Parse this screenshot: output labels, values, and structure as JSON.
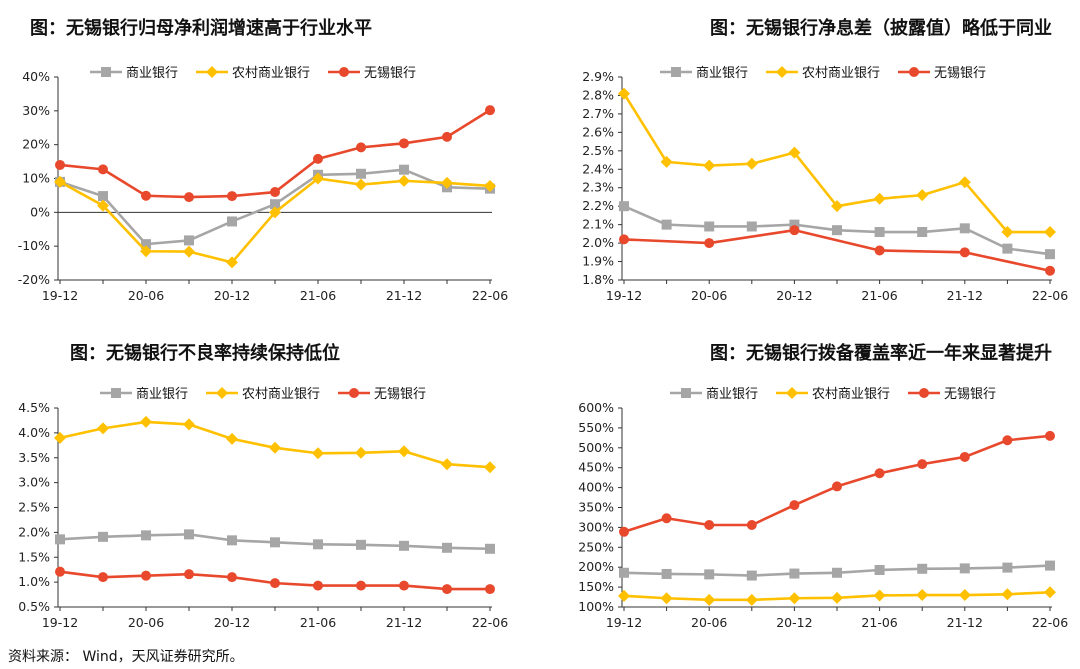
{
  "source": "资料来源：  Wind，天风证券研究所。",
  "series_names": [
    "商业银行",
    "农村商业银行",
    "无锡银行"
  ],
  "series_colors": [
    "#A6A6A6",
    "#FFC000",
    "#E8482C"
  ],
  "chart_data": [
    {
      "type": "line",
      "title": "图：无锡银行归母净利润增速高于行业水平",
      "x_tick_labels": [
        "19-12",
        "20-06",
        "20-12",
        "21-06",
        "21-12",
        "22-06"
      ],
      "x": [
        "19-12",
        "20-03",
        "20-06",
        "20-09",
        "20-12",
        "21-03",
        "21-06",
        "21-09",
        "21-12",
        "22-03",
        "22-06"
      ],
      "ylim": [
        -20,
        40
      ],
      "yticks": [
        -20,
        -10,
        0,
        10,
        20,
        30,
        40
      ],
      "ytick_labels": [
        "-20%",
        "-10%",
        "0%",
        "10%",
        "20%",
        "30%",
        "40%"
      ],
      "series": [
        {
          "name": "商业银行",
          "values": [
            9,
            4.8,
            -9.4,
            -8.3,
            -2.7,
            2.4,
            11.1,
            11.4,
            12.6,
            7.4,
            7
          ]
        },
        {
          "name": "农村商业银行",
          "values": [
            9,
            2,
            -11.5,
            -11.6,
            -14.8,
            0,
            10,
            8.2,
            9.3,
            8.7,
            7.8
          ]
        },
        {
          "name": "无锡银行",
          "values": [
            14,
            12.7,
            4.9,
            4.5,
            4.8,
            6,
            15.8,
            19.2,
            20.4,
            22.3,
            30.2
          ]
        }
      ]
    },
    {
      "type": "line",
      "title": "图：无锡银行净息差（披露值）略低于同业",
      "x_tick_labels": [
        "19-12",
        "20-06",
        "20-12",
        "21-06",
        "21-12",
        "22-06"
      ],
      "x": [
        "19-12",
        "20-03",
        "20-06",
        "20-09",
        "20-12",
        "21-03",
        "21-06",
        "21-09",
        "21-12",
        "22-03",
        "22-06"
      ],
      "ylim": [
        1.8,
        2.9
      ],
      "yticks": [
        1.8,
        1.9,
        2.0,
        2.1,
        2.2,
        2.3,
        2.4,
        2.5,
        2.6,
        2.7,
        2.8,
        2.9
      ],
      "ytick_labels": [
        "1.8%",
        "1.9%",
        "2.0%",
        "2.1%",
        "2.2%",
        "2.3%",
        "2.4%",
        "2.5%",
        "2.6%",
        "2.7%",
        "2.8%",
        "2.9%"
      ],
      "series": [
        {
          "name": "商业银行",
          "values": [
            2.2,
            2.1,
            2.09,
            2.09,
            2.1,
            2.07,
            2.06,
            2.06,
            2.08,
            1.97,
            1.94
          ]
        },
        {
          "name": "农村商业银行",
          "values": [
            2.81,
            2.44,
            2.42,
            2.43,
            2.49,
            2.2,
            2.24,
            2.26,
            2.33,
            2.06,
            2.06
          ]
        },
        {
          "name": "无锡银行",
          "values": [
            2.02,
            null,
            2.0,
            null,
            2.07,
            null,
            1.96,
            null,
            1.95,
            null,
            1.85
          ]
        }
      ]
    },
    {
      "type": "line",
      "title": "图：无锡银行不良率持续保持低位",
      "x_tick_labels": [
        "19-12",
        "20-06",
        "20-12",
        "21-06",
        "21-12",
        "22-06"
      ],
      "x": [
        "19-12",
        "20-03",
        "20-06",
        "20-09",
        "20-12",
        "21-03",
        "21-06",
        "21-09",
        "21-12",
        "22-03",
        "22-06"
      ],
      "ylim": [
        0.5,
        4.5
      ],
      "yticks": [
        0.5,
        1.0,
        1.5,
        2.0,
        2.5,
        3.0,
        3.5,
        4.0,
        4.5
      ],
      "ytick_labels": [
        "0.5%",
        "1.0%",
        "1.5%",
        "2.0%",
        "2.5%",
        "3.0%",
        "3.5%",
        "4.0%",
        "4.5%"
      ],
      "series": [
        {
          "name": "商业银行",
          "values": [
            1.86,
            1.91,
            1.94,
            1.96,
            1.84,
            1.8,
            1.76,
            1.75,
            1.73,
            1.69,
            1.67
          ]
        },
        {
          "name": "农村商业银行",
          "values": [
            3.9,
            4.09,
            4.22,
            4.17,
            3.88,
            3.7,
            3.59,
            3.6,
            3.63,
            3.37,
            3.31
          ]
        },
        {
          "name": "无锡银行",
          "values": [
            1.21,
            1.1,
            1.13,
            1.16,
            1.1,
            0.98,
            0.93,
            0.93,
            0.93,
            0.86,
            0.86
          ]
        }
      ]
    },
    {
      "type": "line",
      "title": "图：无锡银行拨备覆盖率近一年来显著提升",
      "x_tick_labels": [
        "19-12",
        "20-06",
        "20-12",
        "21-06",
        "21-12",
        "22-06"
      ],
      "x": [
        "19-12",
        "20-03",
        "20-06",
        "20-09",
        "20-12",
        "21-03",
        "21-06",
        "21-09",
        "21-12",
        "22-03",
        "22-06"
      ],
      "ylim": [
        100,
        600
      ],
      "yticks": [
        100,
        150,
        200,
        250,
        300,
        350,
        400,
        450,
        500,
        550,
        600
      ],
      "ytick_labels": [
        "100%",
        "150%",
        "200%",
        "250%",
        "300%",
        "350%",
        "400%",
        "450%",
        "500%",
        "550%",
        "600%"
      ],
      "series": [
        {
          "name": "商业银行",
          "values": [
            186,
            183,
            182,
            179,
            184,
            186,
            193,
            196,
            197,
            199,
            204
          ]
        },
        {
          "name": "农村商业银行",
          "values": [
            128,
            122,
            118,
            118,
            122,
            123,
            129,
            130,
            130,
            132,
            137
          ]
        },
        {
          "name": "无锡银行",
          "values": [
            289,
            323,
            306,
            306,
            356,
            403,
            436,
            459,
            477,
            519,
            530
          ]
        }
      ]
    }
  ]
}
